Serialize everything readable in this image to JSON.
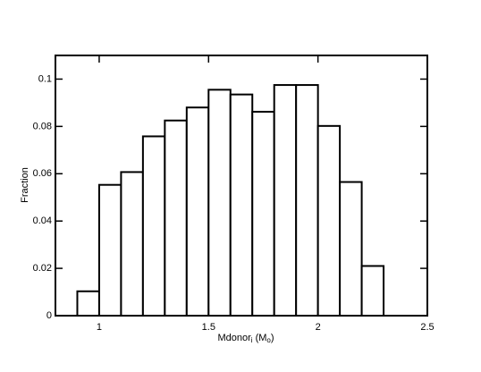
{
  "chart_data": {
    "type": "histogram",
    "xlabel_parts": [
      "Mdonor",
      "i",
      " (M",
      "o",
      ")"
    ],
    "ylabel": "Fraction",
    "bins": [
      0.9,
      1.0,
      1.1,
      1.2,
      1.3,
      1.4,
      1.5,
      1.6,
      1.7,
      1.8,
      1.9,
      2.0,
      2.1,
      2.2,
      2.3
    ],
    "values": [
      0.0103,
      0.0553,
      0.0607,
      0.0758,
      0.0825,
      0.088,
      0.0955,
      0.0935,
      0.0862,
      0.0975,
      0.0975,
      0.0802,
      0.0565,
      0.021
    ],
    "color": "#000000",
    "xlim": [
      0.8,
      2.5
    ],
    "xticks": [
      1,
      1.5,
      2,
      2.5
    ],
    "ylim": [
      0,
      0.11
    ],
    "yticks": [
      0,
      0.02,
      0.04,
      0.06,
      0.08,
      0.1
    ]
  }
}
